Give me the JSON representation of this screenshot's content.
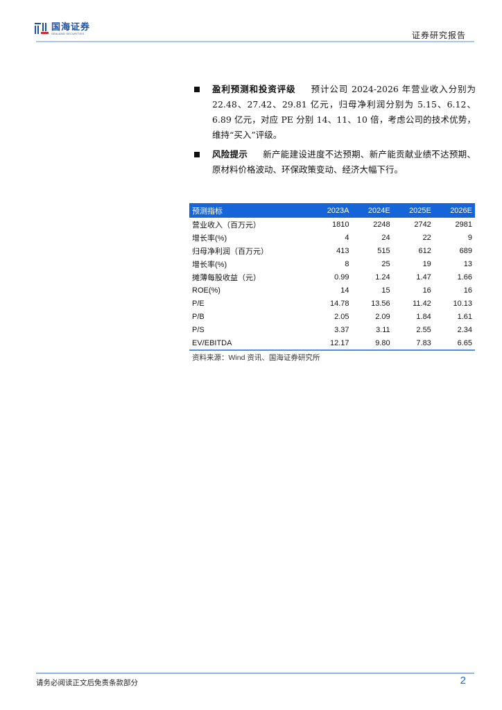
{
  "header": {
    "logo_cn": "国海证券",
    "logo_en": "SEALAND SECURITIES",
    "report_type": "证券研究报告"
  },
  "sections": [
    {
      "title": "盈利预测和投资评级",
      "text": "预计公司 2024-2026 年营业收入分别为 22.48、27.42、29.81 亿元，归母净利润分别为 5.15、6.12、6.89 亿元，对应 PE 分别 14、11、10 倍，考虑公司的技术优势，维持“买入”评级。"
    },
    {
      "title": "风险提示",
      "text": "新产能建设进度不达预期、新产能贡献业绩不达预期、原材料价格波动、环保政策变动、经济大幅下行。"
    }
  ],
  "table": {
    "headers": [
      "预测指标",
      "2023A",
      "2024E",
      "2025E",
      "2026E"
    ],
    "rows": [
      [
        "营业收入（百万元）",
        "1810",
        "2248",
        "2742",
        "2981"
      ],
      [
        "增长率(%)",
        "4",
        "24",
        "22",
        "9"
      ],
      [
        "归母净利润（百万元）",
        "413",
        "515",
        "612",
        "689"
      ],
      [
        "增长率(%)",
        "8",
        "25",
        "19",
        "13"
      ],
      [
        "摊薄每股收益（元）",
        "0.99",
        "1.24",
        "1.47",
        "1.66"
      ],
      [
        "ROE(%)",
        "14",
        "15",
        "16",
        "16"
      ],
      [
        "P/E",
        "14.78",
        "13.56",
        "11.42",
        "10.13"
      ],
      [
        "P/B",
        "2.05",
        "2.09",
        "1.84",
        "1.61"
      ],
      [
        "P/S",
        "3.37",
        "3.11",
        "2.55",
        "2.34"
      ],
      [
        "EV/EBITDA",
        "12.17",
        "9.80",
        "7.83",
        "6.65"
      ]
    ],
    "source": "资料来源：Wind 资讯、国海证券研究所"
  },
  "footer": {
    "disclaimer": "请务必阅读正文后免责条款部分",
    "page_number": "2"
  },
  "colors": {
    "accent": "#1565d8",
    "rule": "#a9c6f2"
  }
}
